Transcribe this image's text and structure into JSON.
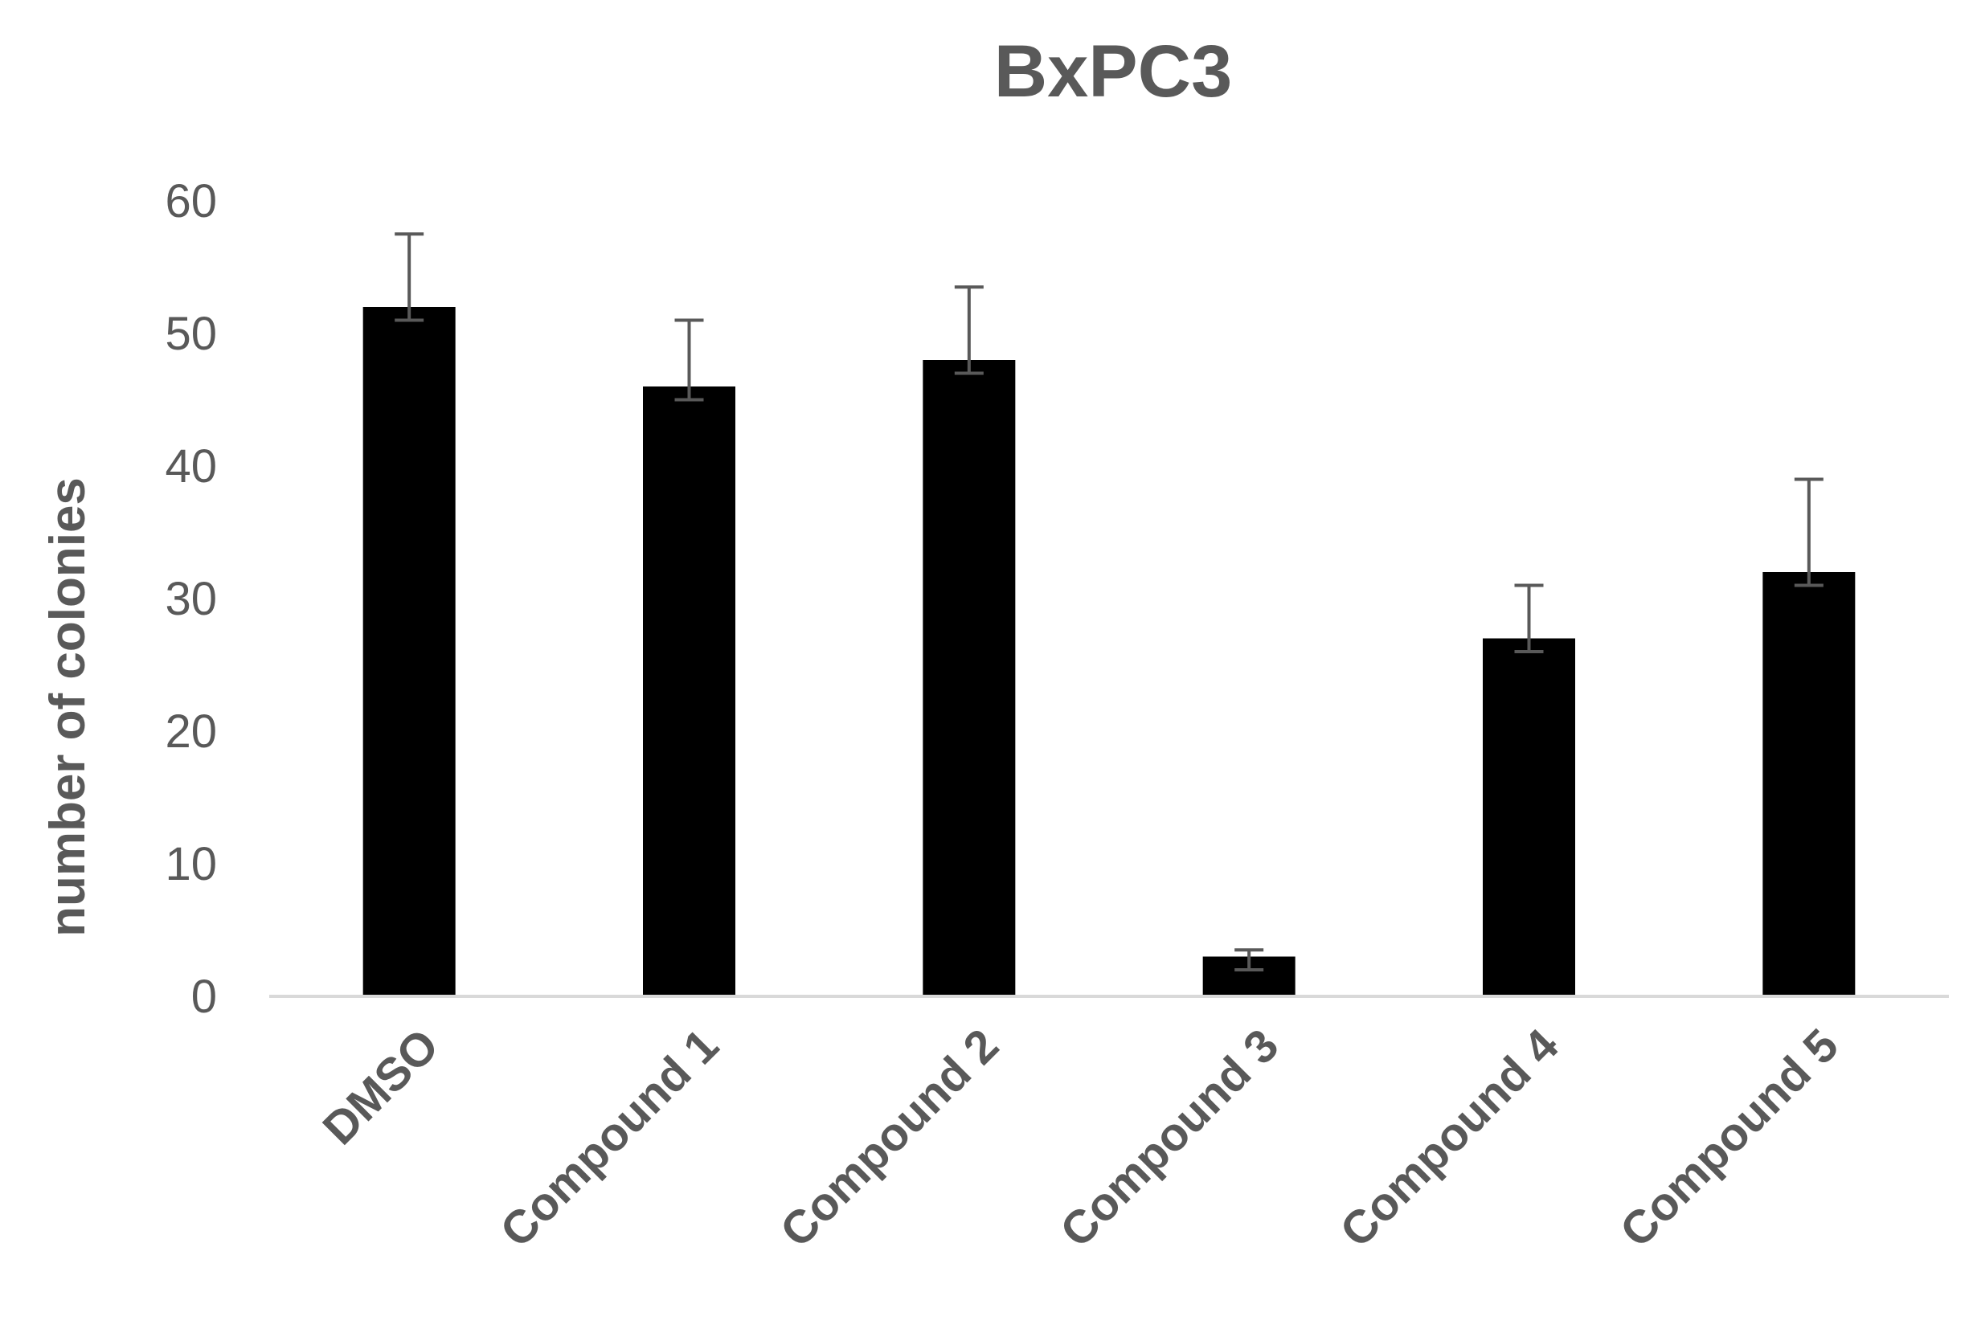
{
  "chart_data": {
    "type": "bar",
    "title": "BxPC3",
    "xlabel": "",
    "ylabel": "number of colonies",
    "ylim": [
      0,
      60
    ],
    "yticks": [
      "0",
      "10",
      "20",
      "30",
      "40",
      "50",
      "60"
    ],
    "grid": false,
    "legend": "none",
    "categories": [
      "DMSO",
      "Compound 1",
      "Compound 2",
      "Compound 3",
      "Compound 4",
      "Compound 5"
    ],
    "series": [
      {
        "values": [
          52,
          46,
          48,
          3,
          27,
          32
        ],
        "error_upper": [
          57.5,
          51,
          53.5,
          3.5,
          31,
          39
        ],
        "error_lower": [
          51,
          45,
          47,
          2,
          26,
          31
        ],
        "color": "#000000"
      }
    ]
  }
}
